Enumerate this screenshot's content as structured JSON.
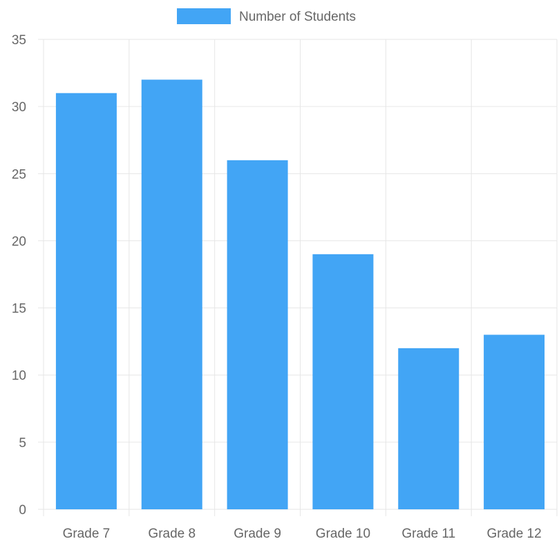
{
  "chart_data": {
    "type": "bar",
    "title": "",
    "xlabel": "",
    "ylabel": "",
    "categories": [
      "Grade 7",
      "Grade 8",
      "Grade 9",
      "Grade 10",
      "Grade 11",
      "Grade 12"
    ],
    "series": [
      {
        "name": "Number of Students",
        "values": [
          31,
          32,
          26,
          19,
          12,
          13
        ],
        "color": "#42a5f5"
      }
    ],
    "ylim": [
      0,
      35
    ],
    "yticks": [
      "0",
      "5",
      "10",
      "15",
      "20",
      "25",
      "30",
      "35"
    ],
    "grid": true,
    "legend_position": "top",
    "colors": {
      "bar": "#42a5f5",
      "grid": "#e6e6e6",
      "axis_text": "#666666"
    }
  }
}
